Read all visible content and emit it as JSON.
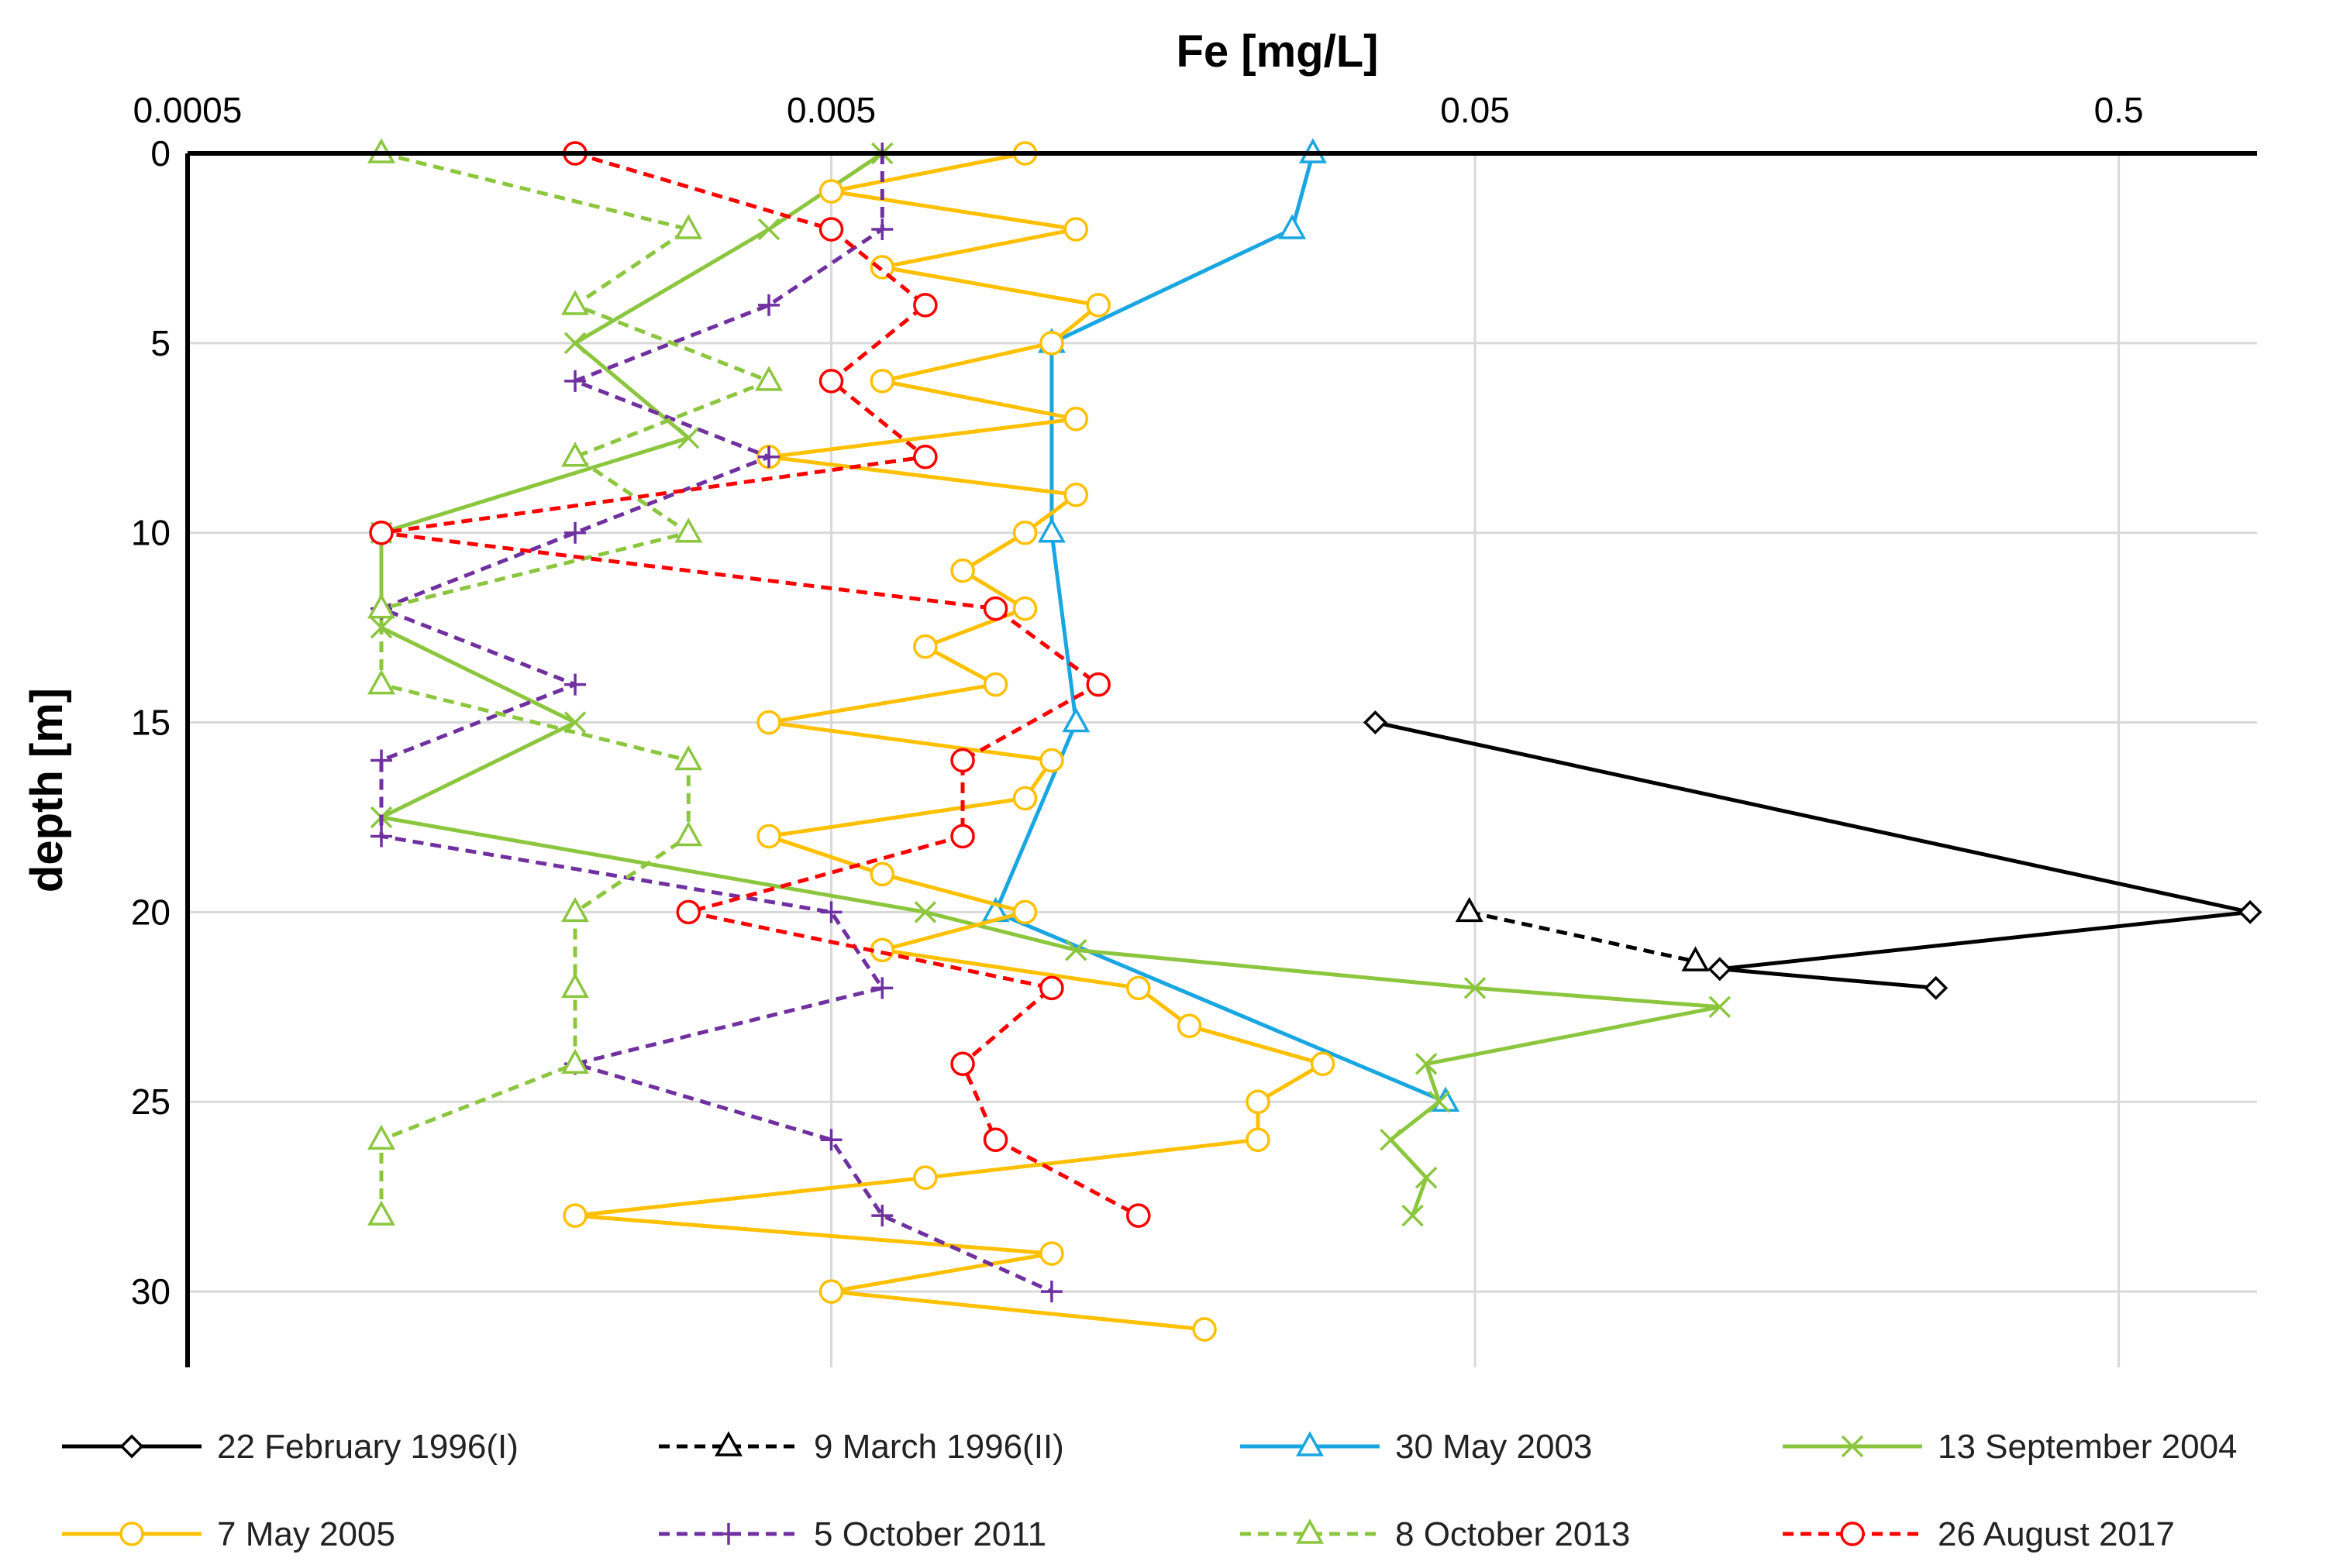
{
  "chart_data": {
    "type": "line",
    "title": "Fe [mg/L]",
    "xlabel": "Fe [mg/L]",
    "ylabel": "depth [m]",
    "x_scale": "log",
    "xlim": [
      0.0005,
      0.82
    ],
    "ylim": [
      0,
      32
    ],
    "x_ticks": [
      0.0005,
      0.005,
      0.05,
      0.5
    ],
    "x_tick_labels": [
      "0.0005",
      "0.005",
      "0.05",
      "0.5"
    ],
    "y_ticks": [
      0,
      5,
      10,
      15,
      20,
      25,
      30
    ],
    "y_tick_labels": [
      "0",
      "5",
      "10",
      "15",
      "20",
      "25",
      "30"
    ],
    "grid": true,
    "legend_position": "bottom",
    "series": [
      {
        "name": "22 February 1996(I)",
        "color": "#000000",
        "dash": "solid",
        "marker": "diamond",
        "points": [
          [
            0.035,
            15
          ],
          [
            0.8,
            20
          ],
          [
            0.12,
            21.5
          ],
          [
            0.26,
            22
          ]
        ]
      },
      {
        "name": "9 March 1996(II)",
        "color": "#000000",
        "dash": "dashed",
        "marker": "triangle",
        "points": [
          [
            0.049,
            20
          ],
          [
            0.11,
            21.3
          ]
        ]
      },
      {
        "name": "30 May 2003",
        "color": "#1AA6E0",
        "dash": "solid",
        "marker": "triangle",
        "points": [
          [
            0.028,
            0
          ],
          [
            0.026,
            2
          ],
          [
            0.011,
            5
          ],
          [
            0.011,
            10
          ],
          [
            0.012,
            15
          ],
          [
            0.009,
            20
          ],
          [
            0.045,
            25
          ]
        ]
      },
      {
        "name": "13 September 2004",
        "color": "#8CC63F",
        "dash": "solid",
        "marker": "x",
        "points": [
          [
            0.006,
            0
          ],
          [
            0.004,
            2
          ],
          [
            0.002,
            5
          ],
          [
            0.003,
            7.5
          ],
          [
            0.001,
            10
          ],
          [
            0.001,
            12.5
          ],
          [
            0.002,
            15
          ],
          [
            0.001,
            17.5
          ],
          [
            0.007,
            20
          ],
          [
            0.012,
            21
          ],
          [
            0.05,
            22
          ],
          [
            0.12,
            22.5
          ],
          [
            0.042,
            24
          ],
          [
            0.044,
            25
          ],
          [
            0.037,
            26
          ],
          [
            0.042,
            27
          ],
          [
            0.04,
            28
          ]
        ]
      },
      {
        "name": "7 May 2005",
        "color": "#FFC000",
        "dash": "solid",
        "marker": "circle",
        "points": [
          [
            0.01,
            0
          ],
          [
            0.005,
            1
          ],
          [
            0.012,
            2
          ],
          [
            0.006,
            3
          ],
          [
            0.013,
            4
          ],
          [
            0.011,
            5
          ],
          [
            0.006,
            6
          ],
          [
            0.012,
            7
          ],
          [
            0.004,
            8
          ],
          [
            0.012,
            9
          ],
          [
            0.01,
            10
          ],
          [
            0.008,
            11
          ],
          [
            0.01,
            12
          ],
          [
            0.007,
            13
          ],
          [
            0.009,
            14
          ],
          [
            0.004,
            15
          ],
          [
            0.011,
            16
          ],
          [
            0.01,
            17
          ],
          [
            0.004,
            18
          ],
          [
            0.006,
            19
          ],
          [
            0.01,
            20
          ],
          [
            0.006,
            21
          ],
          [
            0.015,
            22
          ],
          [
            0.018,
            23
          ],
          [
            0.029,
            24
          ],
          [
            0.023,
            25
          ],
          [
            0.023,
            26
          ],
          [
            0.007,
            27
          ],
          [
            0.002,
            28
          ],
          [
            0.011,
            29
          ],
          [
            0.005,
            30
          ],
          [
            0.019,
            31
          ]
        ]
      },
      {
        "name": "5 October 2011",
        "color": "#7030A0",
        "dash": "dashed",
        "marker": "plus",
        "points": [
          [
            0.006,
            0
          ],
          [
            0.006,
            2
          ],
          [
            0.004,
            4
          ],
          [
            0.002,
            6
          ],
          [
            0.004,
            8
          ],
          [
            0.002,
            10
          ],
          [
            0.001,
            12
          ],
          [
            0.002,
            14
          ],
          [
            0.001,
            16
          ],
          [
            0.001,
            18
          ],
          [
            0.005,
            20
          ],
          [
            0.006,
            22
          ],
          [
            0.002,
            24
          ],
          [
            0.005,
            26
          ],
          [
            0.006,
            28
          ],
          [
            0.011,
            30
          ]
        ]
      },
      {
        "name": "8 October 2013",
        "color": "#8CC63F",
        "dash": "dashed",
        "marker": "triangle",
        "points": [
          [
            0.001,
            0
          ],
          [
            0.003,
            2
          ],
          [
            0.002,
            4
          ],
          [
            0.004,
            6
          ],
          [
            0.002,
            8
          ],
          [
            0.003,
            10
          ],
          [
            0.001,
            12
          ],
          [
            0.001,
            14
          ],
          [
            0.003,
            16
          ],
          [
            0.003,
            18
          ],
          [
            0.002,
            20
          ],
          [
            0.002,
            22
          ],
          [
            0.002,
            24
          ],
          [
            0.001,
            26
          ],
          [
            0.001,
            28
          ]
        ]
      },
      {
        "name": "26 August 2017",
        "color": "#FF0000",
        "dash": "dashed",
        "marker": "circle",
        "points": [
          [
            0.002,
            0
          ],
          [
            0.005,
            2
          ],
          [
            0.007,
            4
          ],
          [
            0.005,
            6
          ],
          [
            0.007,
            8
          ],
          [
            0.001,
            10
          ],
          [
            0.009,
            12
          ],
          [
            0.013,
            14
          ],
          [
            0.008,
            16
          ],
          [
            0.008,
            18
          ],
          [
            0.003,
            20
          ],
          [
            0.011,
            22
          ],
          [
            0.008,
            24
          ],
          [
            0.009,
            26
          ],
          [
            0.015,
            28
          ]
        ]
      }
    ]
  }
}
